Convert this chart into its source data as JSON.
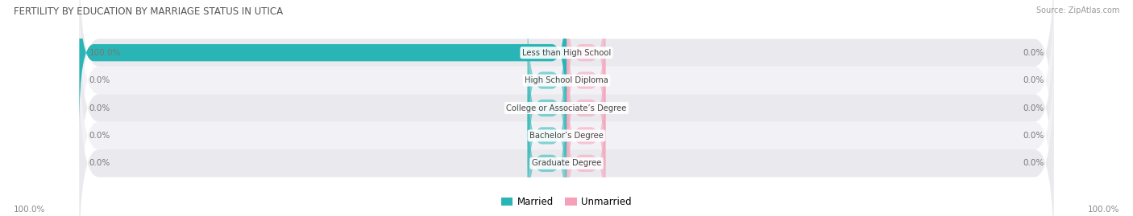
{
  "title": "FERTILITY BY EDUCATION BY MARRIAGE STATUS IN UTICA",
  "source": "Source: ZipAtlas.com",
  "categories": [
    "Less than High School",
    "High School Diploma",
    "College or Associate’s Degree",
    "Bachelor’s Degree",
    "Graduate Degree"
  ],
  "married_values": [
    100.0,
    0.0,
    0.0,
    0.0,
    0.0
  ],
  "unmarried_values": [
    0.0,
    0.0,
    0.0,
    0.0,
    0.0
  ],
  "married_color": "#29b5b5",
  "unmarried_color": "#f5a0b8",
  "row_bg_even": "#eaeaee",
  "row_bg_odd": "#f2f2f6",
  "text_color": "#444444",
  "title_color": "#555555",
  "label_color": "#777777",
  "bottom_left_label": "100.0%",
  "bottom_right_label": "100.0%",
  "max_value": 100.0,
  "legend_married": "Married",
  "legend_unmarried": "Unmarried",
  "background_color": "#ffffff",
  "small_bar_width": 8.0
}
